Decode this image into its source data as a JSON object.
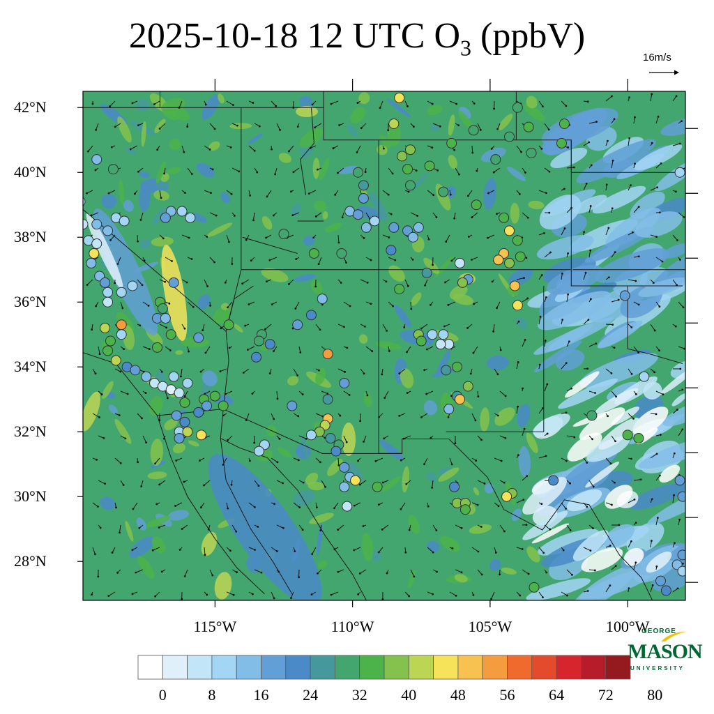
{
  "title": {
    "prefix": "2025-10-18 12 UTC O",
    "subscript": "3",
    "suffix": " (ppbV)"
  },
  "wind_reference": {
    "label": "16m/s",
    "speed": 16
  },
  "map": {
    "lon_range": [
      -119.8,
      -97.9
    ],
    "lat_range": [
      26.8,
      42.5
    ],
    "lat_labels": [
      "42°N",
      "40°N",
      "38°N",
      "36°N",
      "34°N",
      "32°N",
      "30°N",
      "28°N"
    ],
    "lat_values": [
      42,
      40,
      38,
      36,
      34,
      32,
      30,
      28
    ],
    "lon_labels": [
      "115°W",
      "110°W",
      "105°W",
      "100°W"
    ],
    "lon_values": [
      -115,
      -110,
      -105,
      -100
    ]
  },
  "colorbar": {
    "levels": [
      0,
      4,
      8,
      12,
      16,
      20,
      24,
      28,
      32,
      36,
      40,
      44,
      48,
      52,
      56,
      60,
      64,
      68,
      72,
      76,
      80
    ],
    "colors": [
      "#ffffff",
      "#dff0fa",
      "#c2e6f8",
      "#a3d5f4",
      "#82bde8",
      "#619fd6",
      "#4a8ac8",
      "#45999c",
      "#44a66f",
      "#4cb34a",
      "#84c24d",
      "#bcd553",
      "#f6e35a",
      "#f8c250",
      "#f59c3e",
      "#f06a2e",
      "#e44b2d",
      "#d7252e",
      "#b61c2a",
      "#951a1f"
    ],
    "labels": [
      "0",
      "8",
      "16",
      "24",
      "32",
      "40",
      "48",
      "56",
      "64",
      "72",
      "80"
    ]
  },
  "stations": [
    {
      "lon": -108.3,
      "lat": 42.3,
      "v": 48
    },
    {
      "lon": -108.5,
      "lat": 41.5,
      "v": 44
    },
    {
      "lon": -108.2,
      "lat": 40.5,
      "v": 42
    },
    {
      "lon": -107.9,
      "lat": 40.7,
      "v": 40
    },
    {
      "lon": -108.0,
      "lat": 40.1,
      "v": 36
    },
    {
      "lon": -107.2,
      "lat": 40.2,
      "v": 38
    },
    {
      "lon": -106.4,
      "lat": 40.9,
      "v": 36
    },
    {
      "lon": -105.6,
      "lat": 41.3,
      "v": 34
    },
    {
      "lon": -104.3,
      "lat": 41.1,
      "v": 34
    },
    {
      "lon": -103.6,
      "lat": 41.4,
      "v": 36
    },
    {
      "lon": -104.0,
      "lat": 42.0,
      "v": 34
    },
    {
      "lon": -102.3,
      "lat": 41.5,
      "v": 38
    },
    {
      "lon": -102.4,
      "lat": 40.9,
      "v": 36
    },
    {
      "lon": -103.5,
      "lat": 40.6,
      "v": 34
    },
    {
      "lon": -104.8,
      "lat": 40.4,
      "v": 34
    },
    {
      "lon": -107.9,
      "lat": 39.6,
      "v": 32
    },
    {
      "lon": -106.7,
      "lat": 39.4,
      "v": 34
    },
    {
      "lon": -105.5,
      "lat": 39.0,
      "v": 38
    },
    {
      "lon": -104.5,
      "lat": 38.6,
      "v": 36
    },
    {
      "lon": -104.3,
      "lat": 38.2,
      "v": 48
    },
    {
      "lon": -104.0,
      "lat": 37.9,
      "v": 36
    },
    {
      "lon": -104.5,
      "lat": 37.5,
      "v": 52
    },
    {
      "lon": -104.7,
      "lat": 37.3,
      "v": 54
    },
    {
      "lon": -104.3,
      "lat": 37.2,
      "v": 40
    },
    {
      "lon": -103.9,
      "lat": 37.4,
      "v": 38
    },
    {
      "lon": -104.1,
      "lat": 36.5,
      "v": 52
    },
    {
      "lon": -104.0,
      "lat": 35.9,
      "v": 48
    },
    {
      "lon": -106.1,
      "lat": 37.2,
      "v": 8
    },
    {
      "lon": -105.8,
      "lat": 36.7,
      "v": 20
    },
    {
      "lon": -106.0,
      "lat": 36.6,
      "v": 42
    },
    {
      "lon": -107.3,
      "lat": 36.9,
      "v": 28
    },
    {
      "lon": -108.3,
      "lat": 36.4,
      "v": 38
    },
    {
      "lon": -108.5,
      "lat": 38.3,
      "v": 22
    },
    {
      "lon": -108.0,
      "lat": 38.2,
      "v": 20
    },
    {
      "lon": -107.8,
      "lat": 38.0,
      "v": 18
    },
    {
      "lon": -107.6,
      "lat": 38.3,
      "v": 16
    },
    {
      "lon": -109.8,
      "lat": 40.0,
      "v": 34
    },
    {
      "lon": -109.6,
      "lat": 39.6,
      "v": 30
    },
    {
      "lon": -109.6,
      "lat": 39.2,
      "v": 20
    },
    {
      "lon": -110.1,
      "lat": 38.8,
      "v": 18
    },
    {
      "lon": -109.8,
      "lat": 38.7,
      "v": 20
    },
    {
      "lon": -109.5,
      "lat": 38.3,
      "v": 18
    },
    {
      "lon": -109.2,
      "lat": 38.5,
      "v": 12
    },
    {
      "lon": -108.6,
      "lat": 37.6,
      "v": 24
    },
    {
      "lon": -111.4,
      "lat": 37.5,
      "v": 36
    },
    {
      "lon": -110.4,
      "lat": 37.5,
      "v": 34
    },
    {
      "lon": -112.5,
      "lat": 38.1,
      "v": 32
    },
    {
      "lon": -111.1,
      "lat": 36.1,
      "v": 18
    },
    {
      "lon": -111.5,
      "lat": 35.6,
      "v": 24
    },
    {
      "lon": -112.0,
      "lat": 35.3,
      "v": 20
    },
    {
      "lon": -110.9,
      "lat": 34.4,
      "v": 58
    },
    {
      "lon": -110.3,
      "lat": 33.5,
      "v": 20
    },
    {
      "lon": -110.9,
      "lat": 33.0,
      "v": 30
    },
    {
      "lon": -112.2,
      "lat": 32.8,
      "v": 22
    },
    {
      "lon": -110.9,
      "lat": 32.4,
      "v": 52
    },
    {
      "lon": -111.0,
      "lat": 32.2,
      "v": 46
    },
    {
      "lon": -111.2,
      "lat": 32.0,
      "v": 40
    },
    {
      "lon": -111.5,
      "lat": 31.9,
      "v": 14
    },
    {
      "lon": -110.8,
      "lat": 31.8,
      "v": 28
    },
    {
      "lon": -110.5,
      "lat": 31.6,
      "v": 34
    },
    {
      "lon": -110.6,
      "lat": 31.4,
      "v": 24
    },
    {
      "lon": -110.3,
      "lat": 30.9,
      "v": 22
    },
    {
      "lon": -110.1,
      "lat": 30.6,
      "v": 18
    },
    {
      "lon": -109.9,
      "lat": 30.5,
      "v": 50
    },
    {
      "lon": -110.3,
      "lat": 30.3,
      "v": 16
    },
    {
      "lon": -110.2,
      "lat": 29.7,
      "v": 8
    },
    {
      "lon": -109.1,
      "lat": 30.3,
      "v": 38
    },
    {
      "lon": -107.1,
      "lat": 35.0,
      "v": 14
    },
    {
      "lon": -106.7,
      "lat": 35.0,
      "v": 12
    },
    {
      "lon": -106.5,
      "lat": 34.7,
      "v": 10
    },
    {
      "lon": -106.8,
      "lat": 34.7,
      "v": 8
    },
    {
      "lon": -107.6,
      "lat": 35.0,
      "v": 40
    },
    {
      "lon": -107.5,
      "lat": 34.8,
      "v": 36
    },
    {
      "lon": -106.2,
      "lat": 34.0,
      "v": 38
    },
    {
      "lon": -106.6,
      "lat": 33.9,
      "v": 30
    },
    {
      "lon": -105.8,
      "lat": 33.4,
      "v": 40
    },
    {
      "lon": -106.2,
      "lat": 33.1,
      "v": 30
    },
    {
      "lon": -106.1,
      "lat": 33.0,
      "v": 52
    },
    {
      "lon": -106.5,
      "lat": 32.7,
      "v": 18
    },
    {
      "lon": -106.3,
      "lat": 30.3,
      "v": 26
    },
    {
      "lon": -106.2,
      "lat": 29.8,
      "v": 40
    },
    {
      "lon": -105.9,
      "lat": 29.8,
      "v": 42
    },
    {
      "lon": -105.9,
      "lat": 29.6,
      "v": 36
    },
    {
      "lon": -104.2,
      "lat": 30.1,
      "v": 40
    },
    {
      "lon": -104.4,
      "lat": 30.0,
      "v": 50
    },
    {
      "lon": -102.7,
      "lat": 30.5,
      "v": 26
    },
    {
      "lon": -103.4,
      "lat": 27.2,
      "v": 38
    },
    {
      "lon": -101.3,
      "lat": 32.5,
      "v": 32
    },
    {
      "lon": -100.0,
      "lat": 31.9,
      "v": 36
    },
    {
      "lon": -99.6,
      "lat": 31.8,
      "v": 38
    },
    {
      "lon": -99.4,
      "lat": 33.7,
      "v": 14
    },
    {
      "lon": -100.1,
      "lat": 36.2,
      "v": 20
    },
    {
      "lon": -98.1,
      "lat": 40.0,
      "v": 12
    },
    {
      "lon": -98.1,
      "lat": 30.5,
      "v": 22
    },
    {
      "lon": -98.0,
      "lat": 30.0,
      "v": 20
    },
    {
      "lon": -98.0,
      "lat": 28.2,
      "v": 20
    },
    {
      "lon": -98.2,
      "lat": 27.9,
      "v": 16
    },
    {
      "lon": -98.0,
      "lat": 27.7,
      "v": 14
    },
    {
      "lon": -98.8,
      "lat": 27.4,
      "v": 20
    },
    {
      "lon": -98.6,
      "lat": 27.1,
      "v": 24
    },
    {
      "lon": -116.6,
      "lat": 38.8,
      "v": 18
    },
    {
      "lon": -116.8,
      "lat": 38.6,
      "v": 22
    },
    {
      "lon": -116.2,
      "lat": 38.8,
      "v": 14
    },
    {
      "lon": -115.9,
      "lat": 38.6,
      "v": 12
    },
    {
      "lon": -116.5,
      "lat": 36.6,
      "v": 22
    },
    {
      "lon": -117.0,
      "lat": 36.0,
      "v": 36
    },
    {
      "lon": -116.9,
      "lat": 35.8,
      "v": 34
    },
    {
      "lon": -117.1,
      "lat": 35.5,
      "v": 20
    },
    {
      "lon": -116.8,
      "lat": 35.5,
      "v": 18
    },
    {
      "lon": -116.6,
      "lat": 35.0,
      "v": 36
    },
    {
      "lon": -117.1,
      "lat": 34.6,
      "v": 38
    },
    {
      "lon": -115.6,
      "lat": 34.9,
      "v": 20
    },
    {
      "lon": -114.5,
      "lat": 35.3,
      "v": 38
    },
    {
      "lon": -113.3,
      "lat": 35.0,
      "v": 32
    },
    {
      "lon": -113.4,
      "lat": 34.8,
      "v": 34
    },
    {
      "lon": -113.0,
      "lat": 34.7,
      "v": 26
    },
    {
      "lon": -113.5,
      "lat": 34.3,
      "v": 24
    },
    {
      "lon": -119.3,
      "lat": 40.4,
      "v": 18
    },
    {
      "lon": -118.7,
      "lat": 40.1,
      "v": 32
    },
    {
      "lon": -119.9,
      "lat": 39.1,
      "v": 12
    },
    {
      "lon": -119.8,
      "lat": 38.4,
      "v": 8
    },
    {
      "lon": -119.3,
      "lat": 38.4,
      "v": 16
    },
    {
      "lon": -118.6,
      "lat": 38.6,
      "v": 14
    },
    {
      "lon": -118.3,
      "lat": 38.5,
      "v": 12
    },
    {
      "lon": -118.9,
      "lat": 38.2,
      "v": 16
    },
    {
      "lon": -119.6,
      "lat": 37.9,
      "v": 12
    },
    {
      "lon": -119.3,
      "lat": 37.8,
      "v": 10
    },
    {
      "lon": -119.4,
      "lat": 37.5,
      "v": 48
    },
    {
      "lon": -119.5,
      "lat": 37.2,
      "v": 16
    },
    {
      "lon": -119.2,
      "lat": 36.8,
      "v": 18
    },
    {
      "lon": -119.0,
      "lat": 36.6,
      "v": 20
    },
    {
      "lon": -118.9,
      "lat": 36.3,
      "v": 12
    },
    {
      "lon": -118.9,
      "lat": 36.0,
      "v": 8
    },
    {
      "lon": -118.4,
      "lat": 36.3,
      "v": 14
    },
    {
      "lon": -118.0,
      "lat": 36.5,
      "v": 12
    },
    {
      "lon": -119.0,
      "lat": 35.2,
      "v": 44
    },
    {
      "lon": -118.4,
      "lat": 35.3,
      "v": 58
    },
    {
      "lon": -118.4,
      "lat": 35.0,
      "v": 14
    },
    {
      "lon": -118.8,
      "lat": 34.8,
      "v": 38
    },
    {
      "lon": -118.6,
      "lat": 34.2,
      "v": 44
    },
    {
      "lon": -118.9,
      "lat": 34.5,
      "v": 36
    },
    {
      "lon": -118.2,
      "lat": 34.0,
      "v": 24
    },
    {
      "lon": -117.9,
      "lat": 33.9,
      "v": 20
    },
    {
      "lon": -117.5,
      "lat": 33.7,
      "v": 16
    },
    {
      "lon": -117.2,
      "lat": 33.5,
      "v": 10
    },
    {
      "lon": -116.9,
      "lat": 33.4,
      "v": 8
    },
    {
      "lon": -116.6,
      "lat": 33.3,
      "v": 6
    },
    {
      "lon": -116.3,
      "lat": 33.2,
      "v": 10
    },
    {
      "lon": -116.5,
      "lat": 33.7,
      "v": 14
    },
    {
      "lon": -116.1,
      "lat": 32.9,
      "v": 38
    },
    {
      "lon": -116.0,
      "lat": 33.5,
      "v": 12
    },
    {
      "lon": -115.4,
      "lat": 33.0,
      "v": 36
    },
    {
      "lon": -115.0,
      "lat": 33.1,
      "v": 38
    },
    {
      "lon": -114.7,
      "lat": 32.8,
      "v": 36
    },
    {
      "lon": -115.3,
      "lat": 32.8,
      "v": 22
    },
    {
      "lon": -115.6,
      "lat": 32.6,
      "v": 26
    },
    {
      "lon": -116.4,
      "lat": 32.5,
      "v": 20
    },
    {
      "lon": -116.1,
      "lat": 32.3,
      "v": 24
    },
    {
      "lon": -116.3,
      "lat": 32.0,
      "v": 14
    },
    {
      "lon": -116.0,
      "lat": 32.0,
      "v": 46
    },
    {
      "lon": -115.5,
      "lat": 31.9,
      "v": 48
    },
    {
      "lon": -116.3,
      "lat": 31.8,
      "v": 22
    },
    {
      "lon": -113.2,
      "lat": 31.6,
      "v": 14
    },
    {
      "lon": -113.4,
      "lat": 31.4,
      "v": 12
    }
  ],
  "logo": {
    "top": "GEORGE",
    "name": "MASON",
    "bottom": "UNIVERSITY"
  }
}
